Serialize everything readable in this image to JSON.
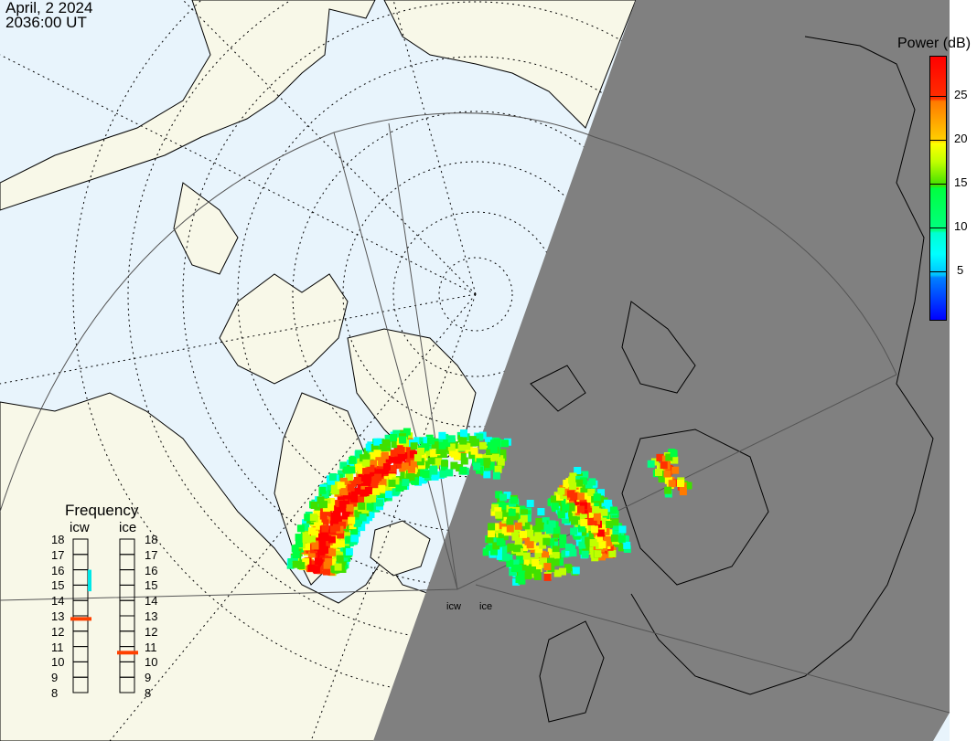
{
  "header": {
    "date": "April, 2 2024",
    "time": "2036:00 UT"
  },
  "colorbar": {
    "title": "Power (dB)",
    "ticks": [
      "25",
      "20",
      "15",
      "10",
      "5"
    ],
    "range": [
      0,
      30
    ],
    "colors": [
      "#0000ff",
      "#0080ff",
      "#00ffff",
      "#00ff80",
      "#00ff40",
      "#40e000",
      "#ffff00",
      "#ff7a00",
      "#ff0000"
    ]
  },
  "frequency": {
    "title": "Frequency",
    "radars": [
      {
        "name": "icw",
        "value": 12.8,
        "cyan_range": [
          14.6,
          16
        ]
      },
      {
        "name": "ice",
        "value": 10.6
      }
    ],
    "scale": [
      "18",
      "17",
      "16",
      "15",
      "14",
      "13",
      "12",
      "11",
      "10",
      "9",
      "8"
    ]
  },
  "radar_labels": [
    "icw",
    "ice"
  ],
  "colors": {
    "ocean": "#e8f4fc",
    "land": "#f8f8e8",
    "night": "#808080",
    "coast": "#000000"
  }
}
